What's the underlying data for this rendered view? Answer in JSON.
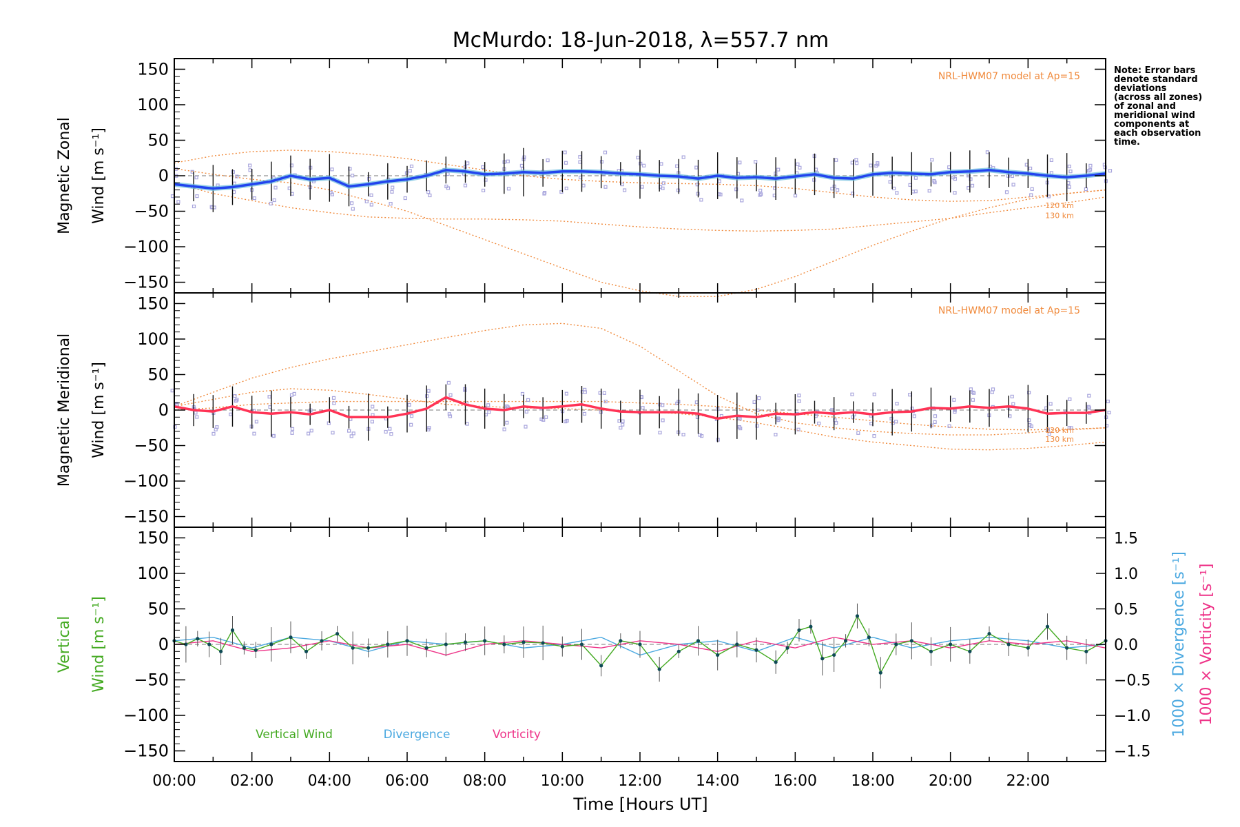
{
  "chart_data": {
    "type": "line",
    "title": "McMurdo: 18-Jun-2018, λ=557.7 nm",
    "xlabel": "Time [Hours UT]",
    "xlim": [
      0,
      24
    ],
    "x_ticks": [
      "00:00",
      "02:00",
      "04:00",
      "06:00",
      "08:00",
      "10:00",
      "12:00",
      "14:00",
      "16:00",
      "18:00",
      "20:00",
      "22:00"
    ],
    "y_ticks": [
      "150",
      "100",
      "50",
      "0",
      "−50",
      "−100",
      "−150"
    ],
    "note": "Note: Error bars\ndenote standard\ndeviations\n(across all zones)\nof zonal and\nmeridional wind\ncomponents at\neach observation\ntime.",
    "colors": {
      "zonal": "#2244ee",
      "zonal_band": "#66bbdd",
      "meridional": "#ff3355",
      "model": "#f08a3c",
      "zone_points": "#a9a6dd",
      "vertical": "#44aa22",
      "divergence": "#4aa8e0",
      "vorticity": "#ee3388",
      "error_bar": "#111111"
    },
    "panels": [
      {
        "name": "zonal",
        "ylabel_line1": "Magnetic Zonal",
        "ylabel_line2": "Wind [m s⁻¹]",
        "ylim": [
          -165,
          165
        ],
        "model_label": "NRL-HWM07 model at Ap=15",
        "altitude_labels": [
          "120 km",
          "130 km"
        ],
        "series": [
          {
            "name": "Magnetic Zonal Wind",
            "x": [
              0,
              0.5,
              1,
              1.5,
              2,
              2.5,
              3,
              3.5,
              4,
              4.5,
              5,
              5.5,
              6,
              6.5,
              7,
              7.5,
              8,
              8.5,
              9,
              9.5,
              10,
              10.5,
              11,
              11.5,
              12,
              12.5,
              13,
              13.5,
              14,
              14.5,
              15,
              15.5,
              16,
              16.5,
              17,
              17.5,
              18,
              18.5,
              19,
              19.5,
              20,
              20.5,
              21,
              21.5,
              22,
              22.5,
              23,
              23.5,
              24
            ],
            "values": [
              -12,
              -15,
              -18,
              -16,
              -12,
              -8,
              0,
              -5,
              -3,
              -15,
              -12,
              -8,
              -5,
              0,
              8,
              6,
              2,
              3,
              5,
              4,
              6,
              6,
              5,
              3,
              2,
              0,
              -1,
              -4,
              0,
              -3,
              -2,
              -4,
              -1,
              2,
              -3,
              -4,
              2,
              4,
              3,
              2,
              5,
              6,
              8,
              5,
              3,
              0,
              -2,
              0,
              3
            ]
          },
          {
            "name": "Model 120 km",
            "x": [
              0,
              1,
              2,
              3,
              4,
              5,
              6,
              7,
              8,
              9,
              10,
              11,
              12,
              13,
              14,
              15,
              16,
              17,
              18,
              19,
              20,
              21,
              22,
              23,
              24
            ],
            "values": [
              10,
              2,
              -5,
              -10,
              -20,
              -35,
              -50,
              -70,
              -90,
              -110,
              -130,
              -150,
              -162,
              -170,
              -170,
              -160,
              -142,
              -120,
              -98,
              -78,
              -60,
              -45,
              -33,
              -25,
              -20
            ]
          },
          {
            "name": "Model 130 km",
            "x": [
              0,
              1,
              2,
              3,
              4,
              5,
              6,
              7,
              8,
              9,
              10,
              11,
              12,
              13,
              14,
              15,
              16,
              17,
              18,
              19,
              20,
              21,
              22,
              23,
              24
            ],
            "values": [
              -10,
              -25,
              -35,
              -45,
              -52,
              -58,
              -60,
              -61,
              -61,
              -62,
              -64,
              -68,
              -72,
              -75,
              -77,
              -78,
              -77,
              -75,
              -70,
              -65,
              -60,
              -52,
              -45,
              -38,
              -30
            ]
          },
          {
            "name": "Model upper",
            "x": [
              0,
              1,
              2,
              3,
              4,
              5,
              6,
              7,
              8,
              9,
              10,
              11,
              12,
              13,
              14,
              15,
              16,
              17,
              18,
              19,
              20,
              21,
              22,
              23,
              24
            ],
            "values": [
              18,
              28,
              34,
              36,
              34,
              30,
              24,
              16,
              8,
              0,
              -5,
              -8,
              -10,
              -11,
              -12,
              -14,
              -18,
              -24,
              -30,
              -34,
              -36,
              -35,
              -30,
              -25,
              -20
            ]
          }
        ]
      },
      {
        "name": "meridional",
        "ylabel_line1": "Magnetic Meridional",
        "ylabel_line2": "Wind [m s⁻¹]",
        "ylim": [
          -165,
          165
        ],
        "model_label": "NRL-HWM07 model at Ap=15",
        "altitude_labels": [
          "120 km",
          "130 km"
        ],
        "series": [
          {
            "name": "Magnetic Meridional Wind",
            "x": [
              0,
              0.5,
              1,
              1.5,
              2,
              2.5,
              3,
              3.5,
              4,
              4.5,
              5,
              5.5,
              6,
              6.5,
              7,
              7.5,
              8,
              8.5,
              9,
              9.5,
              10,
              10.5,
              11,
              11.5,
              12,
              12.5,
              13,
              13.5,
              14,
              14.5,
              15,
              15.5,
              16,
              16.5,
              17,
              17.5,
              18,
              18.5,
              19,
              19.5,
              20,
              20.5,
              21,
              21.5,
              22,
              22.5,
              23,
              23.5,
              24
            ],
            "values": [
              5,
              0,
              -2,
              5,
              -3,
              -5,
              -3,
              -6,
              0,
              -10,
              -10,
              -10,
              -5,
              2,
              18,
              8,
              2,
              0,
              5,
              3,
              5,
              8,
              2,
              -2,
              -3,
              -3,
              -3,
              -5,
              -12,
              -8,
              -10,
              -5,
              -6,
              -3,
              -5,
              -3,
              -6,
              -3,
              -2,
              3,
              2,
              5,
              3,
              5,
              2,
              -5,
              -4,
              -4,
              0
            ]
          },
          {
            "name": "Model 120 km",
            "x": [
              0,
              1,
              2,
              3,
              4,
              5,
              6,
              7,
              8,
              9,
              10,
              11,
              12,
              13,
              14,
              15,
              16,
              17,
              18,
              19,
              20,
              21,
              22,
              23,
              24
            ],
            "values": [
              5,
              25,
              45,
              60,
              72,
              82,
              92,
              102,
              112,
              120,
              122,
              115,
              90,
              55,
              20,
              -5,
              -18,
              -25,
              -30,
              -33,
              -35,
              -35,
              -32,
              -28,
              -25
            ]
          },
          {
            "name": "Model 130 km",
            "x": [
              0,
              1,
              2,
              3,
              4,
              5,
              6,
              7,
              8,
              9,
              10,
              11,
              12,
              13,
              14,
              15,
              16,
              17,
              18,
              19,
              20,
              21,
              22,
              23,
              24
            ],
            "values": [
              5,
              15,
              25,
              30,
              28,
              22,
              15,
              8,
              5,
              3,
              2,
              0,
              -2,
              -5,
              -10,
              -18,
              -28,
              -38,
              -45,
              -50,
              -55,
              -56,
              -54,
              -50,
              -45
            ]
          },
          {
            "name": "Model lower",
            "x": [
              0,
              1,
              2,
              3,
              4,
              5,
              6,
              7,
              8,
              9,
              10,
              11,
              12,
              13,
              14,
              15,
              16,
              17,
              18,
              19,
              20,
              21,
              22,
              23,
              24
            ],
            "values": [
              0,
              3,
              8,
              10,
              12,
              12,
              12,
              12,
              12,
              12,
              12,
              12,
              10,
              8,
              5,
              0,
              -5,
              -10,
              -15,
              -20,
              -24,
              -27,
              -28,
              -27,
              -25
            ]
          }
        ]
      },
      {
        "name": "vertical",
        "ylabel_line1": "Vertical",
        "ylabel_line2": "Wind [m s⁻¹]",
        "ylim": [
          -165,
          165
        ],
        "right_ticks": [
          "1.5",
          "1.0",
          "0.5",
          "0.0",
          "−0.5",
          "−1.0",
          "−1.5"
        ],
        "right_label_divergence": "1000 × Divergence [s⁻¹]",
        "right_label_vorticity": "1000 × Vorticity [s⁻¹]",
        "legend": [
          "Vertical Wind",
          "Divergence",
          "Vorticity"
        ],
        "series": [
          {
            "name": "Vertical Wind",
            "x": [
              0,
              0.3,
              0.6,
              0.9,
              1.2,
              1.5,
              1.8,
              2.1,
              2.5,
              3.0,
              3.4,
              3.8,
              4.2,
              4.6,
              5.0,
              5.5,
              6.0,
              6.5,
              7.0,
              7.5,
              8.0,
              8.5,
              9.0,
              9.5,
              10.0,
              10.5,
              11.0,
              11.5,
              12.0,
              12.5,
              13.0,
              13.5,
              14.0,
              14.5,
              15.0,
              15.5,
              15.8,
              16.1,
              16.4,
              16.7,
              17.0,
              17.3,
              17.6,
              17.9,
              18.2,
              18.6,
              19.0,
              19.5,
              20.0,
              20.5,
              21.0,
              21.5,
              22.0,
              22.5,
              23.0,
              23.5,
              24.0
            ],
            "values": [
              5,
              0,
              8,
              0,
              -10,
              20,
              -5,
              -8,
              0,
              10,
              -10,
              5,
              15,
              -5,
              -5,
              0,
              5,
              -5,
              0,
              3,
              5,
              0,
              3,
              2,
              -3,
              0,
              -30,
              5,
              0,
              -35,
              -10,
              5,
              -15,
              0,
              -8,
              -25,
              -5,
              20,
              25,
              -20,
              -15,
              5,
              40,
              10,
              -40,
              0,
              5,
              -10,
              0,
              -10,
              15,
              0,
              -5,
              25,
              -5,
              -10,
              5
            ]
          },
          {
            "name": "Divergence",
            "x": [
              0,
              1,
              2,
              3,
              4,
              5,
              6,
              7,
              8,
              9,
              10,
              11,
              12,
              13,
              14,
              15,
              16,
              17,
              18,
              19,
              20,
              21,
              22,
              23,
              24
            ],
            "values": [
              0.05,
              0.1,
              -0.05,
              0.1,
              0.05,
              -0.1,
              0.05,
              0.0,
              0.05,
              -0.05,
              0.0,
              0.1,
              -0.15,
              0.0,
              0.05,
              -0.1,
              0.1,
              -0.05,
              0.1,
              -0.05,
              0.05,
              0.1,
              0.05,
              -0.05,
              0.0
            ]
          },
          {
            "name": "Vorticity",
            "x": [
              0,
              1,
              2,
              3,
              4,
              5,
              6,
              7,
              8,
              9,
              10,
              11,
              12,
              13,
              14,
              15,
              16,
              17,
              18,
              19,
              20,
              21,
              22,
              23,
              24
            ],
            "values": [
              0.0,
              0.05,
              -0.1,
              -0.05,
              0.05,
              -0.05,
              0.0,
              -0.15,
              0.0,
              0.05,
              0.0,
              -0.05,
              0.05,
              0.0,
              -0.1,
              0.05,
              -0.05,
              0.1,
              0.0,
              0.05,
              -0.05,
              0.05,
              0.0,
              0.05,
              -0.05
            ]
          }
        ]
      }
    ]
  }
}
